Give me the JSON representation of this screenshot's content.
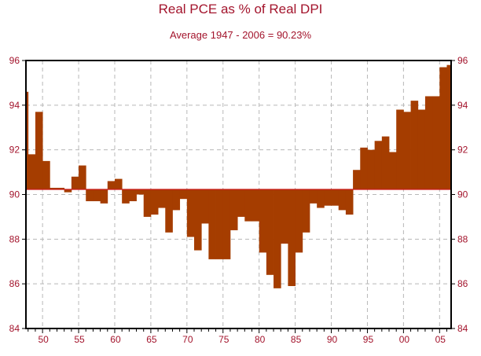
{
  "chart_data": {
    "type": "bar",
    "title": "Real PCE as % of Real DPI",
    "subtitle": "Average 1947 - 2006 = 90.23%",
    "baseline": 90.23,
    "xlim": [
      1947.7,
      2006.6
    ],
    "ylim": [
      84,
      96
    ],
    "yticks": [
      84,
      86,
      88,
      90,
      92,
      94,
      96
    ],
    "xticks": [
      {
        "value": 1950,
        "label": "50"
      },
      {
        "value": 1955,
        "label": "55"
      },
      {
        "value": 1960,
        "label": "60"
      },
      {
        "value": 1965,
        "label": "65"
      },
      {
        "value": 1970,
        "label": "70"
      },
      {
        "value": 1975,
        "label": "75"
      },
      {
        "value": 1980,
        "label": "80"
      },
      {
        "value": 1985,
        "label": "85"
      },
      {
        "value": 1990,
        "label": "90"
      },
      {
        "value": 1995,
        "label": "95"
      },
      {
        "value": 2000,
        "label": "00"
      },
      {
        "value": 2005,
        "label": "05"
      }
    ],
    "x": [
      1947,
      1948,
      1949,
      1950,
      1951,
      1952,
      1953,
      1954,
      1955,
      1956,
      1957,
      1958,
      1959,
      1960,
      1961,
      1962,
      1963,
      1964,
      1965,
      1966,
      1967,
      1968,
      1969,
      1970,
      1971,
      1972,
      1973,
      1974,
      1975,
      1976,
      1977,
      1978,
      1979,
      1980,
      1981,
      1982,
      1983,
      1984,
      1985,
      1986,
      1987,
      1988,
      1989,
      1990,
      1991,
      1992,
      1993,
      1994,
      1995,
      1996,
      1997,
      1998,
      1999,
      2000,
      2001,
      2002,
      2003,
      2004,
      2005,
      2006
    ],
    "values": [
      94.6,
      91.8,
      93.7,
      91.5,
      90.3,
      90.3,
      90.1,
      90.8,
      91.3,
      89.7,
      89.7,
      89.6,
      90.6,
      90.7,
      89.6,
      89.7,
      90.0,
      89.0,
      89.1,
      89.4,
      88.3,
      89.3,
      89.8,
      88.1,
      87.5,
      88.7,
      87.1,
      87.1,
      87.1,
      88.4,
      89.0,
      88.8,
      88.8,
      87.4,
      86.4,
      85.8,
      87.8,
      85.9,
      87.4,
      88.3,
      89.6,
      89.4,
      89.5,
      89.5,
      89.3,
      89.1,
      91.1,
      92.1,
      92.0,
      92.4,
      92.6,
      91.9,
      93.8,
      93.7,
      94.2,
      93.8,
      94.4,
      94.4,
      95.7,
      95.8
    ],
    "bar_color": "#a53d00",
    "baseline_color": "#cc1a1a",
    "axis_color": "#000000",
    "label_color": "#a3142c",
    "grid": true,
    "grid_color": "#b8b8b8"
  }
}
